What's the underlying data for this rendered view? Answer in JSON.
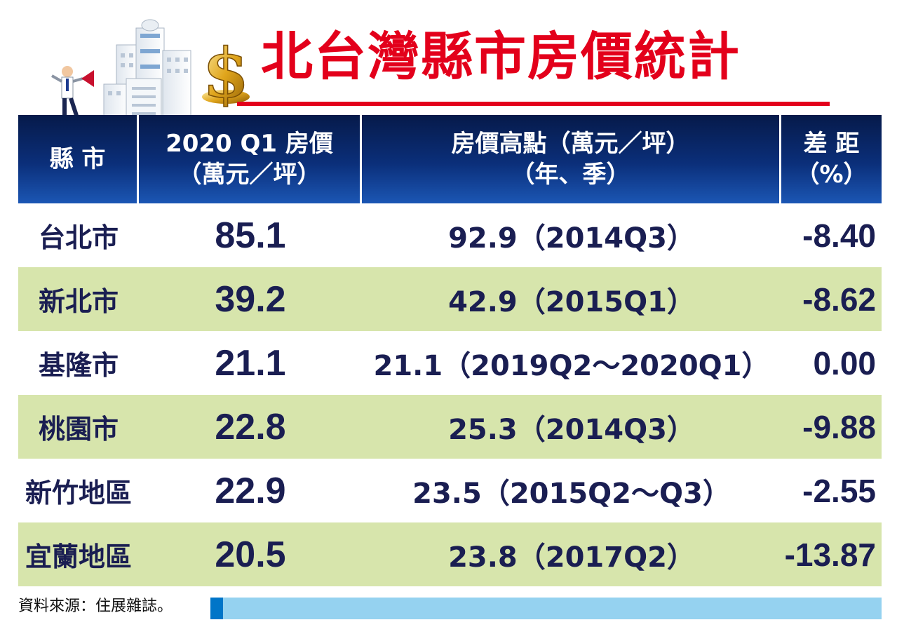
{
  "title": "北台灣縣市房價統計",
  "colors": {
    "title_red": "#e3001b",
    "header_blue": "#0b2f7a",
    "row_green": "#d7e5ac",
    "text_navy": "#1a1e52",
    "footer_bar": "#95d2f0"
  },
  "header": {
    "col1": "縣 市",
    "col2_line1": "2020 Q1 房價",
    "col2_line2": "（萬元／坪）",
    "col3_line1": "房價高點（萬元／坪）",
    "col3_line2": "（年、季）",
    "col4_line1": "差 距",
    "col4_line2": "（%）"
  },
  "rows": [
    {
      "city": "台北市",
      "price": "85.1",
      "high": "92.9（2014Q3）",
      "gap": "-8.40"
    },
    {
      "city": "新北市",
      "price": "39.2",
      "high": "42.9（2015Q1）",
      "gap": "-8.62"
    },
    {
      "city": "基隆市",
      "price": "21.1",
      "high": "21.1（2019Q2～2020Q1）",
      "gap": "0.00"
    },
    {
      "city": "桃園市",
      "price": "22.8",
      "high": "25.3（2014Q3）",
      "gap": "-9.88"
    },
    {
      "city": "新竹地區",
      "price": "22.9",
      "high": "23.5（2015Q2～Q3）",
      "gap": "-2.55"
    },
    {
      "city": "宜蘭地區",
      "price": "20.5",
      "high": "23.8（2017Q2）",
      "gap": "-13.87"
    }
  ],
  "source": "資料來源：住展雜誌。",
  "icons": {
    "illustration": "buildings-megaphone-dollar-illustration"
  }
}
